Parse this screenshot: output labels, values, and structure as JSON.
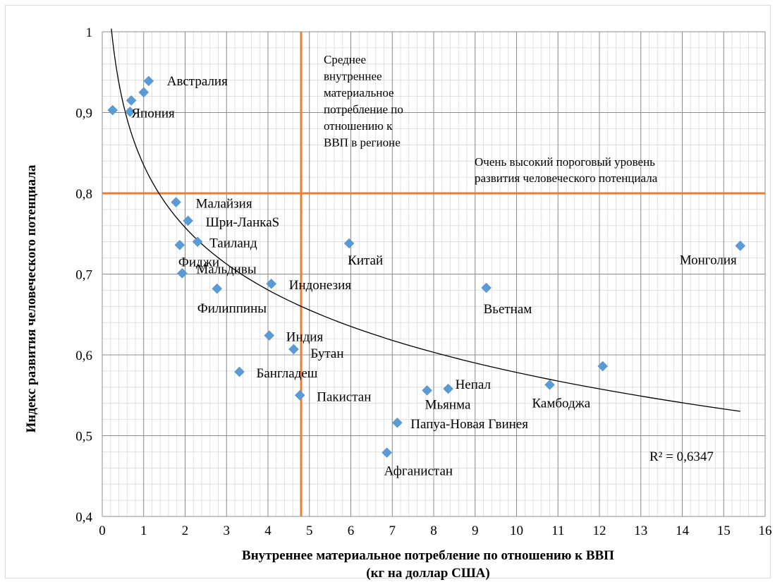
{
  "chart_data": {
    "type": "scatter",
    "xlabel_lines": [
      "Внутреннее материальное потребление по отношению к ВВП",
      "(кг на доллар  США)"
    ],
    "ylabel": "Индекс развития человеческого потенциала",
    "xlim": [
      0,
      16
    ],
    "ylim": [
      0.4,
      1.0
    ],
    "x_ticks": [
      "0",
      "1",
      "2",
      "3",
      "4",
      "5",
      "6",
      "7",
      "8",
      "9",
      "10",
      "11",
      "12",
      "13",
      "14",
      "15",
      "16"
    ],
    "y_ticks": [
      "0,4",
      "0,5",
      "0,6",
      "0,7",
      "0,8",
      "0,9",
      "1"
    ],
    "grid": true,
    "marker_color": "#5B9BD5",
    "reference_line_color": "#ED7D31",
    "points": [
      {
        "label": "Австралия",
        "x": 1.12,
        "y": 0.939
      },
      {
        "label": "",
        "x": 0.7,
        "y": 0.915
      },
      {
        "label": "",
        "x": 1.0,
        "y": 0.925
      },
      {
        "label": "",
        "x": 0.25,
        "y": 0.903
      },
      {
        "label": "Япония",
        "x": 0.67,
        "y": 0.901
      },
      {
        "label": "Малайзия",
        "x": 1.78,
        "y": 0.789
      },
      {
        "label": "Шри-ЛанкаS",
        "x": 2.07,
        "y": 0.766
      },
      {
        "label": "Таиланд",
        "x": 2.3,
        "y": 0.74
      },
      {
        "label": "Фиджи",
        "x": 1.87,
        "y": 0.736
      },
      {
        "label": "Мальдивы",
        "x": 1.93,
        "y": 0.701
      },
      {
        "label": "Филиппины",
        "x": 2.77,
        "y": 0.682
      },
      {
        "label": "Индонезия",
        "x": 4.08,
        "y": 0.688
      },
      {
        "label": "Китай",
        "x": 5.96,
        "y": 0.738
      },
      {
        "label": "Монголия",
        "x": 15.4,
        "y": 0.735
      },
      {
        "label": "Вьетнам",
        "x": 9.27,
        "y": 0.683
      },
      {
        "label": "Индия",
        "x": 4.03,
        "y": 0.624
      },
      {
        "label": "Бутан",
        "x": 4.62,
        "y": 0.607
      },
      {
        "label": "Бангладеш",
        "x": 3.31,
        "y": 0.579
      },
      {
        "label": "Пакистан",
        "x": 4.77,
        "y": 0.55
      },
      {
        "label": "Мьянма",
        "x": 7.84,
        "y": 0.556
      },
      {
        "label": "Непал",
        "x": 8.35,
        "y": 0.558
      },
      {
        "label": "Камбоджа",
        "x": 10.8,
        "y": 0.563
      },
      {
        "label": "",
        "x": 12.08,
        "y": 0.586
      },
      {
        "label": "Папуа-Новая Гвинея",
        "x": 7.12,
        "y": 0.516
      },
      {
        "label": "Афганистан",
        "x": 6.87,
        "y": 0.479
      }
    ],
    "reference_lines": {
      "vertical_x": 4.8,
      "horizontal_y": 0.8
    },
    "trendline": {
      "type": "logarithmic",
      "a": 0.835,
      "b": -0.1115,
      "x_from": 0.22,
      "x_to": 15.4
    },
    "annotations": {
      "vertical_line_label_lines": [
        "Среднее",
        "внутреннее",
        "материальное",
        "потребление по",
        "отношению к",
        "ВВП в регионе"
      ],
      "horizontal_line_label_lines": [
        "Очень высокий пороговый уровень",
        "развития человеческого потенциала"
      ],
      "r_squared": "R² = 0,6347"
    }
  }
}
